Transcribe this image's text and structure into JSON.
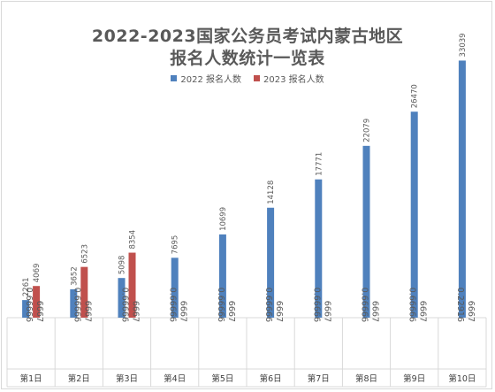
{
  "chart_data": {
    "type": "bar",
    "title_lines": [
      "2022-2023国家公务员考试内蒙古地区",
      "报名人数统计一览表"
    ],
    "categories": [
      "第1日",
      "第2日",
      "第3日",
      "第4日",
      "第5日",
      "第6日",
      "第7日",
      "第8日",
      "第9日",
      "第10日"
    ],
    "row_labels": [
      [
        "0.66666",
        "6667"
      ],
      [
        "0.66666",
        "6667"
      ],
      [
        "0.66666",
        "6667"
      ],
      [
        "0.66666",
        "6667"
      ],
      [
        "0.66666",
        "6667"
      ],
      [
        "0.66666",
        "6667"
      ],
      [
        "0.66666",
        "6667"
      ],
      [
        "0.66666",
        "6667"
      ],
      [
        "0.66666",
        "6667"
      ],
      [
        "0.22916",
        "6667"
      ]
    ],
    "series": [
      {
        "name": "2022 报名人数",
        "color": "#4f81bd",
        "values": [
          2261,
          3652,
          5098,
          7695,
          10699,
          14128,
          17771,
          22079,
          26470,
          33039
        ]
      },
      {
        "name": "2023 报名人数",
        "color": "#c0504d",
        "values": [
          4069,
          6523,
          8354,
          null,
          null,
          null,
          null,
          null,
          null,
          null
        ]
      }
    ],
    "ylim": [
      0,
      34000
    ],
    "legend_position": "top",
    "grid": false
  }
}
